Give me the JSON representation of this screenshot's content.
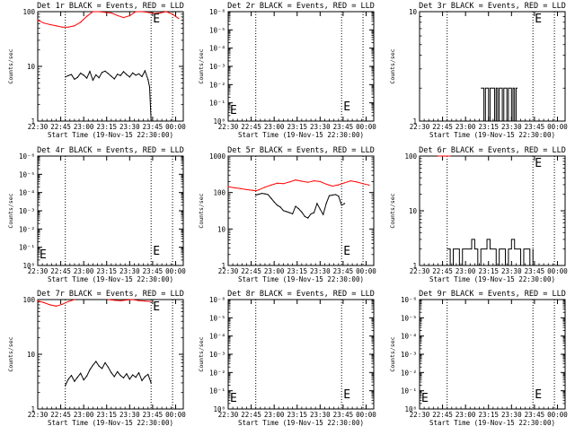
{
  "chart_data": [
    {
      "type": "line",
      "title": "Det 1r BLACK = Events, RED = LLD",
      "ylabel": "Counts/sec",
      "xlabel": "Start Time (19-Nov-15 22:30:00)",
      "x_ticks": [
        "22:30",
        "22:45",
        "23:00",
        "23:15",
        "23:30",
        "23:45",
        "00:00"
      ],
      "y_scale": "log",
      "ylim": [
        1,
        100
      ],
      "y_ticks": [
        "1",
        "10",
        "100"
      ],
      "marker": "E",
      "x_range_min": [
        0,
        95
      ],
      "vlines_min": [
        18,
        74,
        88
      ],
      "series": [
        {
          "color": "#ff0000",
          "x": [
            0,
            4,
            8,
            12,
            16,
            20,
            24,
            28,
            32,
            36,
            40,
            44,
            48,
            52,
            56,
            60,
            64,
            68,
            72,
            76,
            80,
            84,
            88,
            90,
            92
          ],
          "y": [
            70,
            62,
            58,
            55,
            52,
            52,
            55,
            64,
            82,
            100,
            100,
            97,
            95,
            85,
            78,
            84,
            100,
            100,
            97,
            92,
            95,
            100,
            90,
            82,
            75
          ]
        },
        {
          "color": "#000000",
          "x": [
            18,
            20,
            22,
            24,
            26,
            28,
            30,
            32,
            34,
            36,
            38,
            40,
            42,
            44,
            46,
            48,
            50,
            52,
            54,
            56,
            58,
            60,
            62,
            64,
            66,
            68,
            70,
            72,
            73,
            74
          ],
          "y": [
            6.4,
            6.8,
            7.1,
            5.8,
            6.3,
            7.5,
            6.9,
            6.1,
            8.1,
            5.6,
            7.0,
            6.2,
            7.8,
            8.2,
            7.4,
            6.6,
            5.9,
            7.2,
            6.8,
            8.0,
            7.1,
            6.4,
            7.6,
            6.9,
            7.3,
            6.5,
            8.3,
            5.7,
            4.2,
            1.0
          ]
        }
      ]
    },
    {
      "type": "line",
      "title": "Det 2r BLACK = Events, RED = LLD",
      "ylabel": "Counts/sec",
      "xlabel": "Start Time (19-Nov-15 22:30:00)",
      "x_ticks": [
        "22:30",
        "22:45",
        "23:00",
        "23:15",
        "23:30",
        "23:45",
        "00:00"
      ],
      "y_scale": "log",
      "ylim": [
        1,
        1e-06
      ],
      "y_ticks": [
        "10⁰",
        "10⁻¹",
        "10⁻²",
        "10⁻³",
        "10⁻⁴",
        "10⁻⁵",
        "10⁻⁶"
      ],
      "marker": "E",
      "x_range_min": [
        0,
        95
      ],
      "vlines_min": [
        18,
        74,
        88
      ],
      "series": []
    },
    {
      "type": "line",
      "title": "Det 3r BLACK = Events, RED = LLD",
      "ylabel": "Counts/sec",
      "xlabel": "Start Time (19-Nov-15 22:30:00)",
      "x_ticks": [
        "22:30",
        "22:45",
        "23:00",
        "23:15",
        "23:30",
        "23:45",
        "00:00"
      ],
      "y_scale": "log",
      "ylim": [
        1,
        10
      ],
      "y_ticks": [
        "1",
        "10"
      ],
      "marker": "E",
      "x_range_min": [
        0,
        95
      ],
      "vlines_min": [
        18,
        74,
        88
      ],
      "series": [
        {
          "color": "#000000",
          "style": "spikes",
          "x": [
            40,
            41,
            42,
            43,
            44,
            45,
            46,
            47,
            48,
            49,
            50,
            51,
            52,
            53,
            54,
            55,
            56,
            57,
            58,
            59,
            60,
            61,
            62,
            63,
            64
          ],
          "y": [
            2,
            2,
            1,
            2,
            2,
            1,
            2,
            2,
            2,
            1,
            2,
            1,
            2,
            2,
            1,
            2,
            2,
            1,
            2,
            2,
            1,
            2,
            1,
            2,
            2
          ]
        }
      ]
    },
    {
      "type": "line",
      "title": "Det 4r BLACK = Events, RED = LLD",
      "ylabel": "Counts/sec",
      "xlabel": "Start Time (19-Nov-15 22:30:00)",
      "x_ticks": [
        "22:30",
        "22:45",
        "23:00",
        "23:15",
        "23:30",
        "23:45",
        "00:00"
      ],
      "y_scale": "log",
      "ylim": [
        1,
        1e-06
      ],
      "y_ticks": [
        "10⁰",
        "10⁻¹",
        "10⁻²",
        "10⁻³",
        "10⁻⁴",
        "10⁻⁵",
        "10⁻⁶"
      ],
      "marker": "E",
      "x_range_min": [
        0,
        95
      ],
      "vlines_min": [
        18,
        74,
        88
      ],
      "series": []
    },
    {
      "type": "line",
      "title": "Det 5r BLACK = Events, RED = LLD",
      "ylabel": "Counts/sec",
      "xlabel": "Start Time (19-Nov-15 22:30:00)",
      "x_ticks": [
        "22:30",
        "22:45",
        "23:00",
        "23:15",
        "23:30",
        "23:45",
        "00:00"
      ],
      "y_scale": "log",
      "ylim": [
        1,
        1000
      ],
      "y_ticks": [
        "1",
        "10",
        "100",
        "1000"
      ],
      "marker": "E",
      "x_range_min": [
        0,
        95
      ],
      "vlines_min": [
        18,
        74,
        88
      ],
      "series": [
        {
          "color": "#ff0000",
          "x": [
            0,
            4,
            8,
            12,
            16,
            18,
            20,
            24,
            28,
            32,
            36,
            40,
            44,
            48,
            52,
            56,
            60,
            62,
            64,
            66,
            68,
            72,
            76,
            80,
            84,
            88,
            92
          ],
          "y": [
            145,
            135,
            128,
            120,
            115,
            112,
            118,
            140,
            160,
            180,
            175,
            195,
            220,
            205,
            190,
            210,
            200,
            185,
            170,
            160,
            150,
            162,
            185,
            210,
            195,
            175,
            160
          ]
        },
        {
          "color": "#000000",
          "x": [
            18,
            20,
            22,
            24,
            26,
            28,
            30,
            32,
            34,
            36,
            38,
            40,
            42,
            44,
            46,
            48,
            50,
            52,
            54,
            56,
            58,
            60,
            62,
            64,
            66,
            68,
            70,
            72,
            74,
            76
          ],
          "y": [
            85,
            90,
            95,
            92,
            88,
            70,
            55,
            45,
            40,
            32,
            30,
            28,
            26,
            42,
            36,
            29,
            22,
            20,
            26,
            28,
            50,
            35,
            25,
            50,
            82,
            85,
            88,
            80,
            45,
            50
          ]
        }
      ]
    },
    {
      "type": "line",
      "title": "Det 6r BLACK = Events, RED = LLD",
      "ylabel": "Counts/sec",
      "xlabel": "Start Time (19-Nov-15 22:30:00)",
      "x_ticks": [
        "22:30",
        "22:45",
        "23:00",
        "23:15",
        "23:30",
        "23:45",
        "00:00"
      ],
      "y_scale": "log",
      "ylim": [
        1,
        100
      ],
      "y_ticks": [
        "1",
        "10",
        "100"
      ],
      "marker": "E",
      "x_range_min": [
        0,
        95
      ],
      "vlines_min": [
        18,
        74,
        88
      ],
      "series": [
        {
          "color": "#ff0000",
          "x": [
            12,
            14,
            16,
            18,
            20
          ],
          "y": [
            100,
            100,
            100,
            100,
            100
          ]
        },
        {
          "color": "#000000",
          "style": "spikes",
          "x": [
            18,
            20,
            22,
            24,
            26,
            28,
            30,
            32,
            34,
            36,
            38,
            40,
            42,
            44,
            46,
            48,
            50,
            52,
            54,
            56,
            58,
            60,
            62,
            64,
            66,
            68,
            70,
            72,
            74
          ],
          "y": [
            2,
            1,
            2,
            2,
            1,
            2,
            2,
            2,
            3,
            2,
            1,
            2,
            2,
            3,
            2,
            2,
            1,
            2,
            2,
            1,
            2,
            3,
            2,
            2,
            1,
            2,
            2,
            1,
            2
          ]
        }
      ]
    },
    {
      "type": "line",
      "title": "Det 7r BLACK = Events, RED = LLD",
      "ylabel": "Counts/sec",
      "xlabel": "Start Time (19-Nov-15 22:30:00)",
      "x_ticks": [
        "22:30",
        "22:45",
        "23:00",
        "23:15",
        "23:30",
        "23:45",
        "00:00"
      ],
      "y_scale": "log",
      "ylim": [
        1,
        100
      ],
      "y_ticks": [
        "1",
        "10",
        "100"
      ],
      "marker": "E",
      "x_range_min": [
        0,
        95
      ],
      "vlines_min": [
        18,
        74,
        88
      ],
      "series": [
        {
          "color": "#ff0000",
          "x": [
            0,
            4,
            8,
            12,
            16,
            20,
            24
          ],
          "y": [
            95,
            88,
            80,
            76,
            82,
            92,
            100
          ]
        },
        {
          "color": "#ff0000",
          "x": [
            46,
            50,
            54,
            58,
            62,
            66,
            70,
            74
          ],
          "y": [
            100,
            97,
            95,
            98,
            100,
            96,
            94,
            92
          ]
        },
        {
          "color": "#000000",
          "x": [
            18,
            20,
            22,
            24,
            26,
            28,
            30,
            32,
            34,
            36,
            38,
            40,
            42,
            44,
            46,
            48,
            50,
            52,
            54,
            56,
            58,
            60,
            62,
            64,
            66,
            68,
            70,
            72,
            74
          ],
          "y": [
            2.7,
            3.5,
            4.1,
            3.2,
            3.8,
            4.5,
            3.4,
            4.0,
            5.2,
            6.3,
            7.4,
            6.1,
            5.5,
            7.0,
            5.8,
            4.6,
            3.9,
            4.8,
            4.1,
            3.7,
            4.4,
            3.5,
            4.2,
            3.8,
            4.6,
            3.3,
            3.9,
            4.3,
            3.0
          ]
        }
      ]
    },
    {
      "type": "line",
      "title": "Det 8r BLACK = Events, RED = LLD",
      "ylabel": "Counts/sec",
      "xlabel": "Start Time (19-Nov-15 22:30:00)",
      "x_ticks": [
        "22:30",
        "22:45",
        "23:00",
        "23:15",
        "23:30",
        "23:45",
        "00:00"
      ],
      "y_scale": "log",
      "ylim": [
        1,
        1e-06
      ],
      "y_ticks": [
        "10⁰",
        "10⁻¹",
        "10⁻²",
        "10⁻³",
        "10⁻⁴",
        "10⁻⁵",
        "10⁻⁶"
      ],
      "marker": "E",
      "x_range_min": [
        0,
        95
      ],
      "vlines_min": [
        18,
        74,
        88
      ],
      "series": []
    },
    {
      "type": "line",
      "title": "Det 9r BLACK = Events, RED = LLD",
      "ylabel": "Counts/sec",
      "xlabel": "Start Time (19-Nov-15 22:30:00)",
      "x_ticks": [
        "22:30",
        "22:45",
        "23:00",
        "23:15",
        "23:30",
        "23:45",
        "00:00"
      ],
      "y_scale": "log",
      "ylim": [
        1,
        1e-06
      ],
      "y_ticks": [
        "10⁰",
        "10⁻¹",
        "10⁻²",
        "10⁻³",
        "10⁻⁴",
        "10⁻⁵",
        "10⁻⁶"
      ],
      "marker": "E",
      "x_range_min": [
        0,
        95
      ],
      "vlines_min": [
        18,
        74,
        88
      ],
      "series": []
    }
  ]
}
